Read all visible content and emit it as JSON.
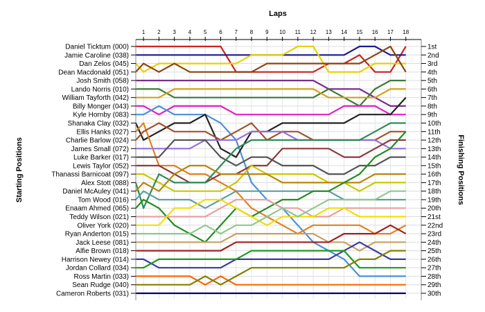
{
  "chart_data": {
    "type": "line",
    "title": "",
    "xlabel": "Laps",
    "ylabel_left": "Starting Positions",
    "ylabel_right": "Finishing Positions",
    "laps": [
      1,
      2,
      3,
      4,
      5,
      6,
      7,
      8,
      9,
      10,
      11,
      12,
      13,
      14,
      15,
      16,
      17,
      18
    ],
    "finishing_position_labels": [
      "1st",
      "2nd",
      "3rd",
      "4th",
      "5th",
      "6th",
      "7th",
      "8th",
      "9th",
      "10th",
      "11th",
      "12th",
      "13th",
      "14th",
      "15th",
      "16th",
      "17th",
      "18th",
      "19th",
      "20th",
      "21st",
      "22nd",
      "23rd",
      "24th",
      "25th",
      "26th",
      "27th",
      "28th",
      "29th",
      "30th"
    ],
    "grid": true,
    "series": [
      {
        "name": "Daniel Ticktum (000)",
        "color": "#cc2222",
        "positions": [
          1,
          1,
          1,
          1,
          1,
          1,
          4,
          4,
          4,
          4,
          4,
          4,
          3,
          3,
          2,
          4,
          4,
          1
        ]
      },
      {
        "name": "Jamie Caroline (038)",
        "color": "#1a1a8a",
        "positions": [
          2,
          2,
          2,
          2,
          2,
          2,
          2,
          2,
          2,
          2,
          2,
          2,
          2,
          2,
          1,
          1,
          2,
          2
        ]
      },
      {
        "name": "Dan Zelos (045)",
        "color": "#e6d200",
        "positions": [
          4,
          3,
          3,
          3,
          3,
          3,
          3,
          2,
          2,
          2,
          1,
          1,
          4,
          4,
          4,
          3,
          3,
          3
        ]
      },
      {
        "name": "Dean Macdonald (051)",
        "color": "#8b4513",
        "positions": [
          3,
          4,
          3,
          4,
          4,
          4,
          4,
          4,
          3,
          3,
          3,
          3,
          3,
          3,
          3,
          2,
          1,
          4
        ]
      },
      {
        "name": "Josh Smith (058)",
        "color": "#7b2d8b",
        "positions": [
          5,
          5,
          5,
          5,
          5,
          5,
          5,
          5,
          5,
          5,
          5,
          5,
          6,
          6,
          6,
          7,
          8,
          8
        ]
      },
      {
        "name": "Lando Norris (010)",
        "color": "#3a7a3a",
        "positions": [
          6,
          6,
          7,
          7,
          7,
          7,
          7,
          7,
          7,
          7,
          7,
          7,
          6,
          7,
          8,
          6,
          5,
          5
        ]
      },
      {
        "name": "William Tayforth (042)",
        "color": "#d4a017",
        "positions": [
          7,
          7,
          6,
          6,
          6,
          6,
          6,
          6,
          6,
          6,
          6,
          6,
          7,
          7,
          7,
          7,
          6,
          6
        ]
      },
      {
        "name": "Billy Monger (043)",
        "color": "#e020c0",
        "positions": [
          8,
          9,
          8,
          8,
          8,
          8,
          9,
          9,
          9,
          9,
          9,
          9,
          9,
          8,
          8,
          8,
          9,
          9
        ]
      },
      {
        "name": "Kyle Hornby (083)",
        "color": "#4a90d9",
        "positions": [
          9,
          8,
          9,
          9,
          9,
          10,
          12,
          17,
          19,
          20,
          22,
          24,
          25,
          26,
          28,
          28,
          28,
          28
        ]
      },
      {
        "name": "Shanaka Clay (032)",
        "color": "#222222",
        "positions": [
          12,
          11,
          10,
          10,
          9,
          13,
          14,
          11,
          11,
          10,
          10,
          10,
          10,
          10,
          9,
          9,
          9,
          7
        ]
      },
      {
        "name": "Ellis Hanks (027)",
        "color": "#e08020",
        "positions": [
          10,
          15,
          15,
          16,
          16,
          17,
          18,
          20,
          21,
          22,
          23,
          22,
          22,
          22,
          22,
          23,
          23,
          22
        ]
      },
      {
        "name": "Charlie Barlow (024)",
        "color": "#a0522d",
        "positions": [
          11,
          10,
          11,
          11,
          11,
          12,
          11,
          10,
          12,
          11,
          11,
          12,
          12,
          12,
          12,
          12,
          11,
          11
        ]
      },
      {
        "name": "James Small (072)",
        "color": "#9370db",
        "positions": [
          13,
          13,
          13,
          13,
          12,
          12,
          12,
          11,
          11,
          11,
          12,
          12,
          12,
          12,
          12,
          12,
          13,
          13
        ]
      },
      {
        "name": "Luke Barker (017)",
        "color": "#555555",
        "positions": [
          14,
          14,
          12,
          12,
          12,
          14,
          15,
          14,
          14,
          15,
          15,
          15,
          16,
          16,
          15,
          15,
          14,
          14
        ]
      },
      {
        "name": "Lewis Taylor (052)",
        "color": "#8b3a3a",
        "positions": [
          15,
          15,
          16,
          17,
          17,
          16,
          16,
          15,
          15,
          13,
          13,
          13,
          13,
          14,
          14,
          13,
          12,
          12
        ]
      },
      {
        "name": "Thanassi Barnicoat (097)",
        "color": "#c8c800",
        "positions": [
          16,
          17,
          18,
          18,
          18,
          18,
          17,
          15,
          16,
          16,
          16,
          16,
          17,
          17,
          18,
          17,
          17,
          17
        ]
      },
      {
        "name": "Alex Stott (088)",
        "color": "#2e8b57",
        "positions": [
          20,
          16,
          17,
          17,
          17,
          15,
          13,
          12,
          12,
          12,
          12,
          12,
          12,
          12,
          12,
          11,
          10,
          10
        ]
      },
      {
        "name": "Daniel McAuley (041)",
        "color": "#b8860b",
        "positions": [
          17,
          18,
          16,
          15,
          15,
          16,
          16,
          16,
          16,
          17,
          17,
          17,
          17,
          17,
          17,
          16,
          16,
          16
        ]
      },
      {
        "name": "Tom Wood (016)",
        "color": "#5f9ea0",
        "positions": [
          18,
          19,
          19,
          19,
          20,
          19,
          18,
          18,
          18,
          18,
          18,
          18,
          18,
          19,
          19,
          19,
          19,
          19
        ]
      },
      {
        "name": "Enaam Ahmed (065)",
        "color": "#228b22",
        "positions": [
          19,
          20,
          22,
          23,
          24,
          22,
          20,
          21,
          20,
          19,
          19,
          18,
          18,
          17,
          16,
          14,
          13,
          11
        ]
      },
      {
        "name": "Teddy Wilson (021)",
        "color": "#e8a0a0",
        "positions": [
          21,
          21,
          21,
          21,
          21,
          20,
          19,
          19,
          19,
          20,
          20,
          21,
          21,
          20,
          20,
          20,
          20,
          20
        ]
      },
      {
        "name": "Oliver York (020)",
        "color": "#f0e000",
        "positions": [
          22,
          22,
          20,
          20,
          19,
          19,
          20,
          21,
          22,
          21,
          21,
          21,
          20,
          20,
          21,
          21,
          21,
          21
        ]
      },
      {
        "name": "Ryan Anderton (015)",
        "color": "#90c890",
        "positions": [
          23,
          23,
          23,
          23,
          22,
          23,
          22,
          22,
          21,
          20,
          21,
          20,
          19,
          19,
          19,
          19,
          18,
          18
        ]
      },
      {
        "name": "Jack Leese (081)",
        "color": "#c8a060",
        "positions": [
          24,
          24,
          24,
          24,
          24,
          24,
          23,
          23,
          23,
          23,
          23,
          23,
          24,
          24,
          25,
          24,
          24,
          24
        ]
      },
      {
        "name": "Alfie Brown (018)",
        "color": "#a02020",
        "positions": [
          25,
          25,
          25,
          25,
          25,
          25,
          24,
          24,
          24,
          24,
          24,
          24,
          24,
          23,
          23,
          23,
          22,
          23
        ]
      },
      {
        "name": "Harrison Newey (014)",
        "color": "#3a3aa0",
        "positions": [
          26,
          27,
          27,
          27,
          27,
          27,
          26,
          26,
          26,
          26,
          26,
          26,
          26,
          25,
          24,
          25,
          26,
          26
        ]
      },
      {
        "name": "Jordan Collard (034)",
        "color": "#1a9a1a",
        "positions": [
          27,
          26,
          26,
          26,
          26,
          26,
          26,
          25,
          25,
          25,
          25,
          25,
          25,
          25,
          27,
          27,
          27,
          27
        ]
      },
      {
        "name": "Ross Martin (033)",
        "color": "#ff6600",
        "positions": [
          28,
          28,
          28,
          28,
          29,
          28,
          29,
          29,
          29,
          29,
          29,
          29,
          29,
          29,
          29,
          29,
          29,
          29
        ]
      },
      {
        "name": "Sean Rudge (040)",
        "color": "#808000",
        "positions": [
          29,
          29,
          29,
          29,
          28,
          29,
          28,
          27,
          27,
          27,
          27,
          27,
          27,
          27,
          26,
          26,
          25,
          25
        ]
      },
      {
        "name": "Cameron Roberts (031)",
        "color": "#000066",
        "positions": [
          30,
          30,
          30,
          30,
          30,
          30,
          30,
          30,
          30,
          30,
          30,
          30,
          30,
          30,
          30,
          30,
          30,
          30
        ]
      }
    ]
  }
}
